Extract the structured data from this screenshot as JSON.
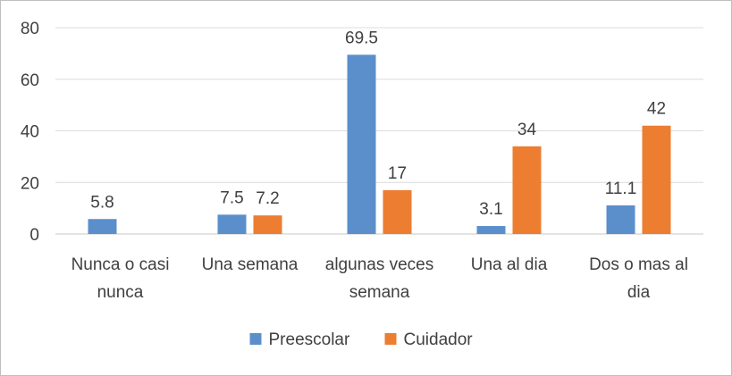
{
  "chart_data": {
    "type": "bar",
    "categories": [
      [
        "Nunca o casi",
        "nunca"
      ],
      [
        "Una semana"
      ],
      [
        "algunas veces",
        "semana"
      ],
      [
        "Una al dia"
      ],
      [
        "Dos o mas al",
        "dia"
      ]
    ],
    "series": [
      {
        "name": "Preescolar",
        "color": "#5b8fcc",
        "values": [
          5.8,
          7.5,
          69.5,
          3.1,
          11.1
        ]
      },
      {
        "name": "Cuidador",
        "color": "#ed7d31",
        "values": [
          null,
          7.2,
          17,
          34,
          42
        ]
      }
    ],
    "ylim": [
      0,
      80
    ],
    "yticks": [
      0,
      20,
      40,
      60,
      80
    ],
    "grid": true,
    "legend_position": "bottom"
  }
}
